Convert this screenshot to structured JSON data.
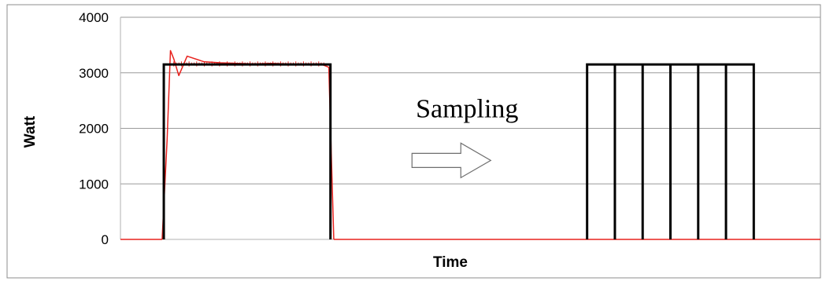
{
  "chart_data": {
    "type": "line",
    "title": "",
    "xlabel": "Time",
    "ylabel": "Watt",
    "ylim": [
      0,
      4000
    ],
    "yticks": [
      0,
      1000,
      2000,
      3000,
      4000
    ],
    "grid": true,
    "legend": "none",
    "colors": {
      "measured": "#e8231f",
      "idealized": "#000000",
      "grid": "#9a9a9a",
      "frame": "#8c8c8c",
      "arrow_stroke": "#6e6e6e"
    },
    "series": [
      {
        "style": "measured",
        "x": [
          0.5,
          0.8,
          1.0,
          1.2,
          1.5,
          2.0,
          3.0,
          4.0,
          5.0,
          6.0,
          7.0,
          8.0,
          9.0,
          10.0,
          10.5,
          10.8
        ],
        "y": [
          0,
          1800,
          3400,
          3250,
          2950,
          3300,
          3200,
          3180,
          3170,
          3160,
          3170,
          3160,
          3150,
          3160,
          3100,
          0
        ]
      },
      {
        "style": "idealized-pulse",
        "x": [
          0.6,
          0.6,
          10.6,
          10.6
        ],
        "y": [
          0,
          3150,
          3150,
          0
        ]
      },
      {
        "style": "sampled-pulse",
        "x": [
          26.0,
          26.0,
          36.0,
          36.0
        ],
        "y": [
          0,
          3150,
          3150,
          0
        ],
        "divisions": 6
      }
    ],
    "xlim": [
      -2,
      40
    ],
    "annotations": [
      {
        "text": "Sampling",
        "x": 18.8,
        "y": 2200
      }
    ]
  }
}
